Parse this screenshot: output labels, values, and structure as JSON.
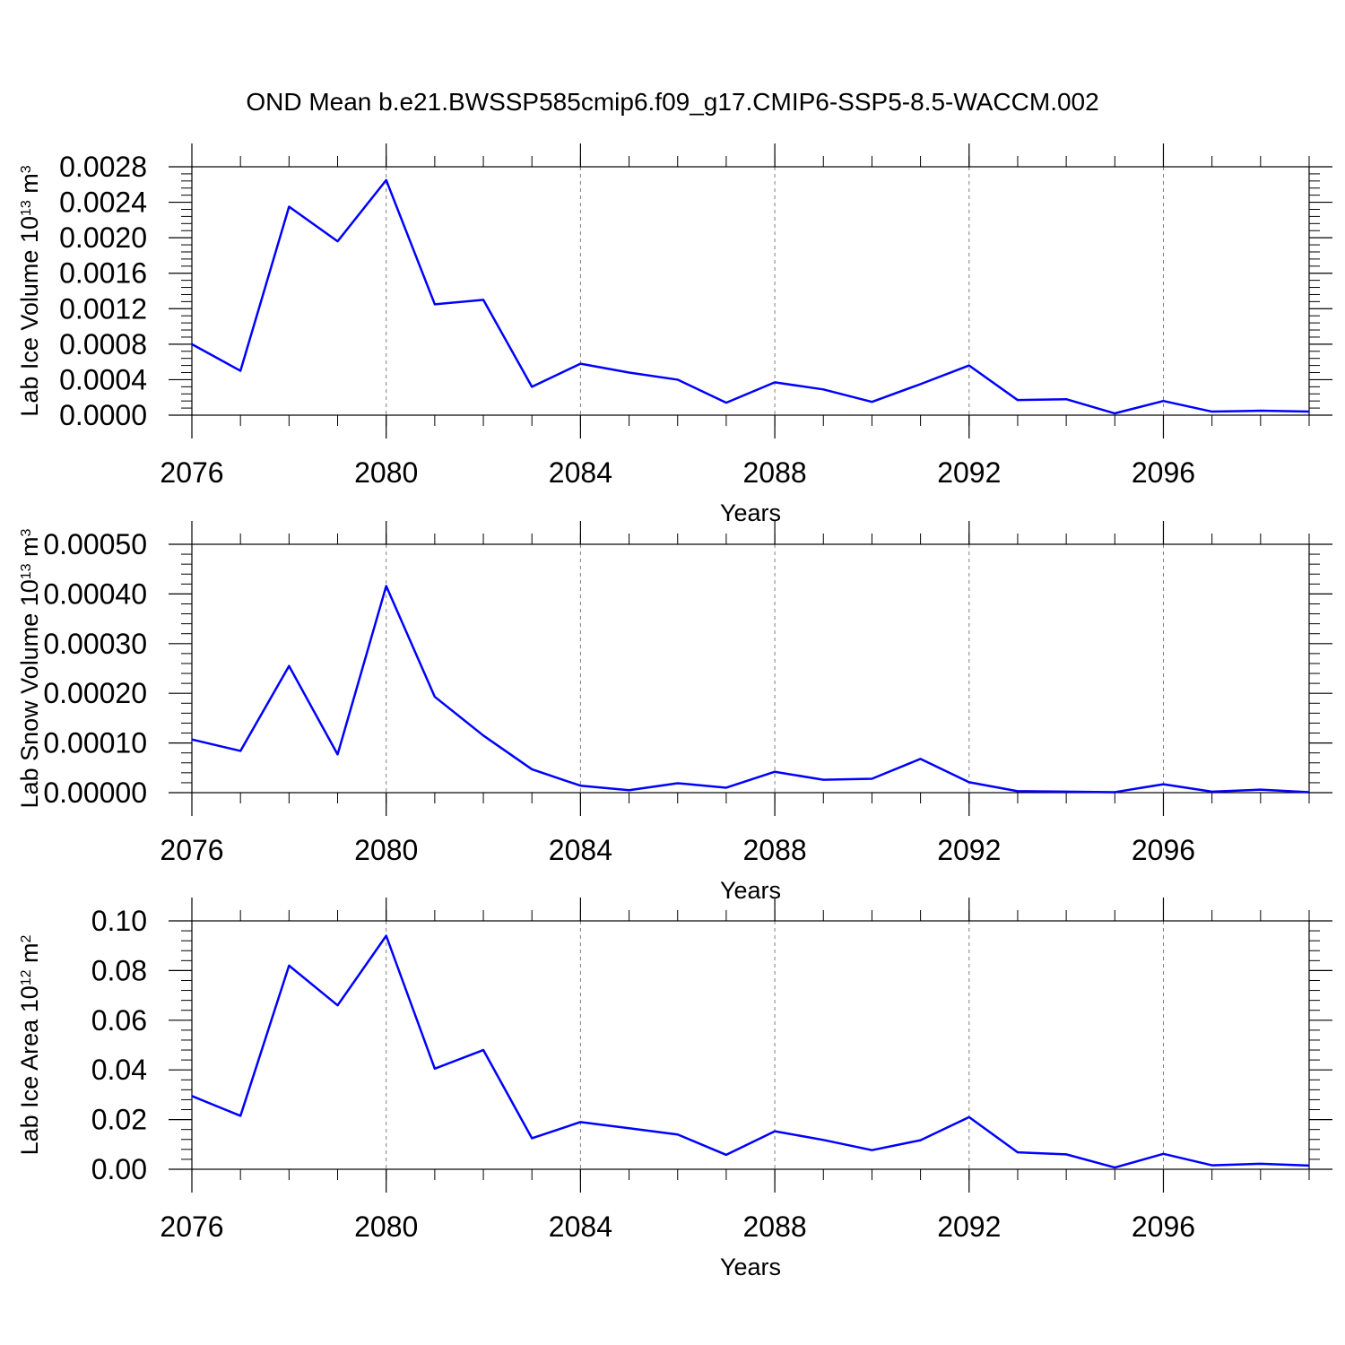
{
  "title": "OND Mean b.e21.BWSSP585cmip6.f09_g17.CMIP6-SSP5-8.5-WACCM.002",
  "colors": {
    "line": "#0000ff",
    "axis": "#000000",
    "grid": "#808080"
  },
  "chart_data": [
    {
      "type": "line",
      "xlabel": "Years",
      "ylabel_prefix": "Lab Ice Volume 10",
      "ylabel_exp": "13",
      "ylabel_unit": " m",
      "ylabel_unit_exp": "3",
      "x": [
        2076,
        2077,
        2078,
        2079,
        2080,
        2081,
        2082,
        2083,
        2084,
        2085,
        2086,
        2087,
        2088,
        2089,
        2090,
        2091,
        2092,
        2093,
        2094,
        2095,
        2096,
        2097,
        2098,
        2099
      ],
      "values": [
        0.0008,
        0.0005,
        0.00235,
        0.00196,
        0.00265,
        0.00125,
        0.0013,
        0.00032,
        0.00058,
        0.00048,
        0.0004,
        0.00014,
        0.00037,
        0.00029,
        0.00015,
        0.00035,
        0.00056,
        0.00017,
        0.00018,
        2e-05,
        0.00016,
        4e-05,
        5e-05,
        4e-05
      ],
      "xlim": [
        2076,
        2099
      ],
      "ylim": [
        0.0,
        0.0028
      ],
      "xticks": [
        2076,
        2080,
        2084,
        2088,
        2092,
        2096
      ],
      "xtick_labels": [
        "2076",
        "2080",
        "2084",
        "2088",
        "2092",
        "2096"
      ],
      "yticks": [
        0.0,
        0.0004,
        0.0008,
        0.0012,
        0.0016,
        0.002,
        0.0024,
        0.0028
      ],
      "ytick_labels": [
        "0.0000",
        "0.0004",
        "0.0008",
        "0.0012",
        "0.0016",
        "0.0020",
        "0.0024",
        "0.0028"
      ]
    },
    {
      "type": "line",
      "xlabel": "Years",
      "ylabel_prefix": "Lab Snow Volume 10",
      "ylabel_exp": "13",
      "ylabel_unit": " m",
      "ylabel_unit_exp": "3",
      "x": [
        2076,
        2077,
        2078,
        2079,
        2080,
        2081,
        2082,
        2083,
        2084,
        2085,
        2086,
        2087,
        2088,
        2089,
        2090,
        2091,
        2092,
        2093,
        2094,
        2095,
        2096,
        2097,
        2098,
        2099
      ],
      "values": [
        0.000107,
        8.4e-05,
        0.000255,
        7.7e-05,
        0.000416,
        0.000193,
        0.000115,
        4.7e-05,
        1.4e-05,
        5e-06,
        1.9e-05,
        1e-05,
        4.2e-05,
        2.6e-05,
        2.8e-05,
        6.8e-05,
        2.1e-05,
        3e-06,
        2e-06,
        1e-06,
        1.7e-05,
        2e-06,
        6e-06,
        1e-06
      ],
      "xlim": [
        2076,
        2099
      ],
      "ylim": [
        0.0,
        0.0005
      ],
      "xticks": [
        2076,
        2080,
        2084,
        2088,
        2092,
        2096
      ],
      "xtick_labels": [
        "2076",
        "2080",
        "2084",
        "2088",
        "2092",
        "2096"
      ],
      "yticks": [
        0.0,
        0.0001,
        0.0002,
        0.0003,
        0.0004,
        0.0005
      ],
      "ytick_labels": [
        "0.00000",
        "0.00010",
        "0.00020",
        "0.00030",
        "0.00040",
        "0.00050"
      ]
    },
    {
      "type": "line",
      "xlabel": "Years",
      "ylabel_prefix": "Lab Ice Area 10",
      "ylabel_exp": "12",
      "ylabel_unit": " m",
      "ylabel_unit_exp": "2",
      "x": [
        2076,
        2077,
        2078,
        2079,
        2080,
        2081,
        2082,
        2083,
        2084,
        2085,
        2086,
        2087,
        2088,
        2089,
        2090,
        2091,
        2092,
        2093,
        2094,
        2095,
        2096,
        2097,
        2098,
        2099
      ],
      "values": [
        0.0295,
        0.0215,
        0.082,
        0.066,
        0.094,
        0.0405,
        0.048,
        0.0125,
        0.019,
        0.0165,
        0.014,
        0.0058,
        0.0153,
        0.0118,
        0.0077,
        0.0117,
        0.021,
        0.0068,
        0.006,
        0.0007,
        0.0062,
        0.0016,
        0.0022,
        0.0015
      ],
      "xlim": [
        2076,
        2099
      ],
      "ylim": [
        0.0,
        0.1
      ],
      "xticks": [
        2076,
        2080,
        2084,
        2088,
        2092,
        2096
      ],
      "xtick_labels": [
        "2076",
        "2080",
        "2084",
        "2088",
        "2092",
        "2096"
      ],
      "yticks": [
        0.0,
        0.02,
        0.04,
        0.06,
        0.08,
        0.1
      ],
      "ytick_labels": [
        "0.00",
        "0.02",
        "0.04",
        "0.06",
        "0.08",
        "0.10"
      ]
    }
  ]
}
